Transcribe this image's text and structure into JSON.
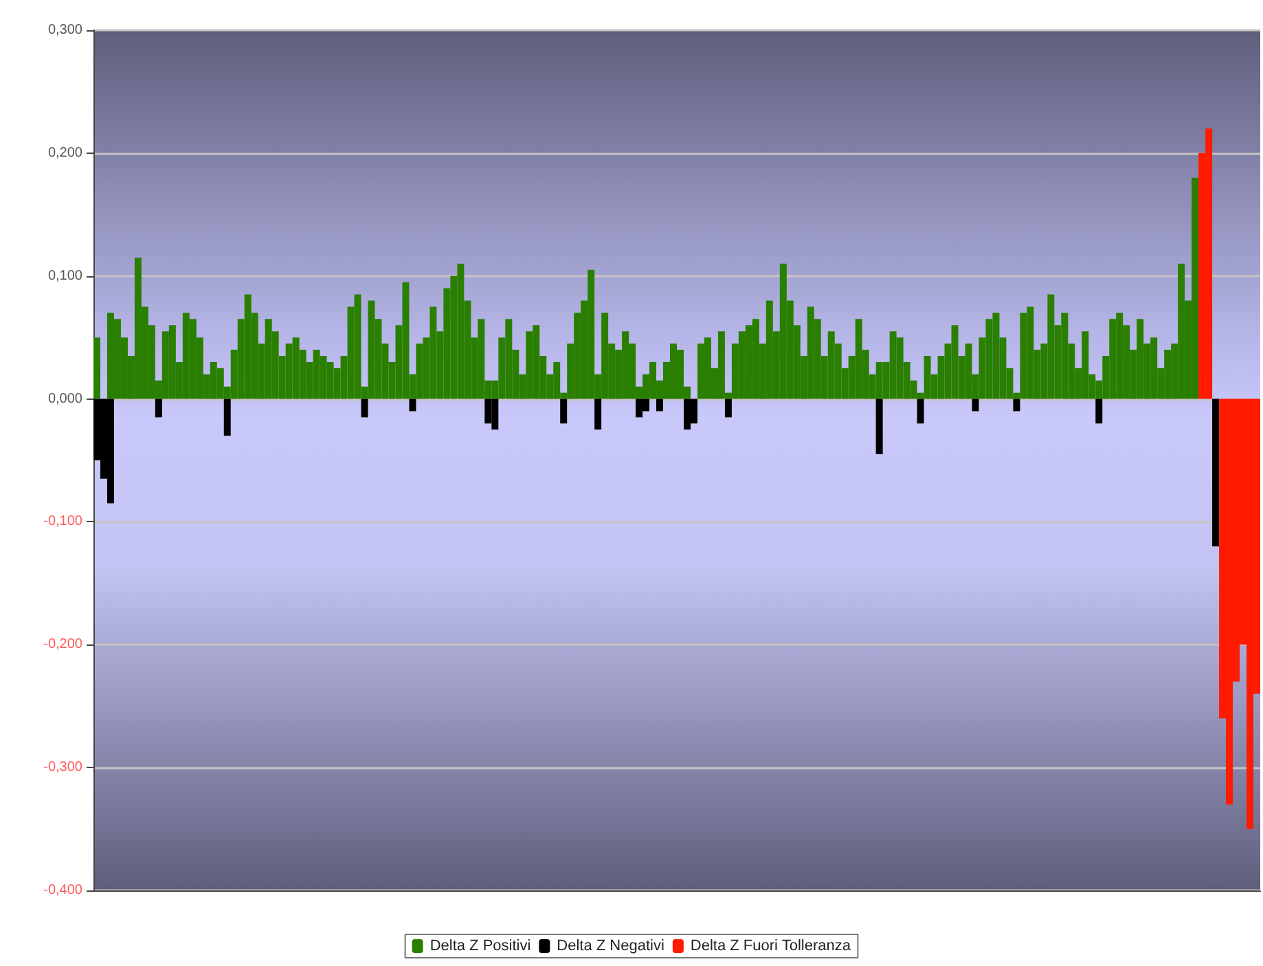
{
  "chart_data": {
    "type": "bar",
    "grid": "y",
    "legend": "bottom",
    "tick_labels": "y",
    "ylim": [
      -0.4,
      0.3
    ],
    "yticks": [
      {
        "value": -0.4,
        "label": "-0,400"
      },
      {
        "value": -0.3,
        "label": "-0,300"
      },
      {
        "value": -0.2,
        "label": "-0,200"
      },
      {
        "value": -0.1,
        "label": "-0,100"
      },
      {
        "value": 0,
        "label": "0,000"
      },
      {
        "value": 0.1,
        "label": "0,100"
      },
      {
        "value": 0.2,
        "label": "0,200"
      },
      {
        "value": 0.3,
        "label": "0,300"
      }
    ],
    "categories": [
      null,
      null,
      null,
      null,
      null,
      null,
      null,
      null,
      null,
      null,
      null,
      null,
      null,
      null,
      null,
      null,
      null,
      null,
      null,
      null,
      null,
      null,
      null,
      null,
      null,
      null,
      null,
      null,
      null,
      null,
      null,
      null,
      null,
      null,
      null,
      null,
      null,
      null,
      null,
      null,
      null,
      null,
      null,
      null,
      null,
      null,
      null,
      null,
      null,
      null,
      null,
      null,
      null,
      null,
      null,
      null,
      null,
      null,
      null,
      null,
      null,
      null,
      null,
      null,
      null,
      null,
      null,
      null,
      null,
      null,
      null,
      null,
      null,
      null,
      null,
      null,
      null,
      null,
      null,
      null,
      null,
      null,
      null,
      null,
      null,
      null,
      null,
      null,
      null,
      null,
      null,
      null,
      null,
      null,
      null,
      null,
      null,
      null,
      null,
      null,
      null,
      null,
      null,
      null,
      null,
      null,
      null,
      null,
      null,
      null,
      null,
      null,
      null,
      null,
      null,
      null,
      null,
      null,
      null,
      null,
      null,
      null,
      null,
      null,
      null,
      null,
      null,
      null,
      null,
      null,
      null,
      null,
      null,
      null,
      null,
      null,
      null,
      null,
      null,
      null,
      null,
      null,
      null,
      null,
      null,
      null,
      null,
      null,
      null,
      null,
      null,
      null,
      null,
      null,
      null,
      null,
      null,
      null,
      null,
      null,
      null,
      null,
      null,
      null,
      null,
      null,
      null,
      null,
      null,
      null
    ],
    "series": [
      {
        "name": "Delta Z Positivi",
        "color": "#2a7f00",
        "values": [
          0.05,
          null,
          0.07,
          0.065,
          0.05,
          0.035,
          0.115,
          0.075,
          0.06,
          0.015,
          0.055,
          0.06,
          0.03,
          0.07,
          0.065,
          0.05,
          0.02,
          0.03,
          0.025,
          0.01,
          0.04,
          0.065,
          0.085,
          0.07,
          0.045,
          0.065,
          0.055,
          0.035,
          0.045,
          0.05,
          0.04,
          0.03,
          0.04,
          0.035,
          0.03,
          0.025,
          0.035,
          0.075,
          0.085,
          0.01,
          0.08,
          0.065,
          0.045,
          0.03,
          0.06,
          0.095,
          0.02,
          0.045,
          0.05,
          0.075,
          0.055,
          0.09,
          0.1,
          0.11,
          0.08,
          0.05,
          0.065,
          0.015,
          0.015,
          0.05,
          0.065,
          0.04,
          0.02,
          0.055,
          0.06,
          0.035,
          0.02,
          0.03,
          0.005,
          0.045,
          0.07,
          0.08,
          0.105,
          0.02,
          0.07,
          0.045,
          0.04,
          0.055,
          0.045,
          0.01,
          0.02,
          0.03,
          0.015,
          0.03,
          0.045,
          0.04,
          0.01,
          null,
          0.045,
          0.05,
          0.025,
          0.055,
          0.005,
          0.045,
          0.055,
          0.06,
          0.065,
          0.045,
          0.08,
          0.055,
          0.11,
          0.08,
          0.06,
          0.035,
          0.075,
          0.065,
          0.035,
          0.055,
          0.045,
          0.025,
          0.035,
          0.065,
          0.04,
          0.02,
          0.03,
          0.03,
          0.055,
          0.05,
          0.03,
          0.015,
          0.005,
          0.035,
          0.02,
          0.035,
          0.045,
          0.06,
          0.035,
          0.045,
          0.02,
          0.05,
          0.065,
          0.07,
          0.05,
          0.025,
          0.005,
          0.07,
          0.075,
          0.04,
          0.045,
          0.085,
          0.06,
          0.07,
          0.045,
          0.025,
          0.055,
          0.02,
          0.015,
          0.035,
          0.065,
          0.07,
          0.06,
          0.04,
          0.065,
          0.045,
          0.05,
          0.025,
          0.04,
          0.045,
          0.11,
          0.08,
          0.18,
          null,
          null,
          null,
          null,
          null,
          null,
          null,
          null,
          null
        ]
      },
      {
        "name": "Delta Z Negativi",
        "color": "#000000",
        "values": [
          -0.05,
          -0.065,
          -0.085,
          null,
          null,
          null,
          null,
          null,
          null,
          -0.015,
          null,
          null,
          null,
          null,
          null,
          null,
          null,
          null,
          null,
          -0.03,
          null,
          null,
          null,
          null,
          null,
          null,
          null,
          null,
          null,
          null,
          null,
          null,
          null,
          null,
          null,
          null,
          null,
          null,
          null,
          -0.015,
          null,
          null,
          null,
          null,
          null,
          null,
          -0.01,
          null,
          null,
          null,
          null,
          null,
          null,
          null,
          null,
          null,
          null,
          -0.02,
          -0.025,
          null,
          null,
          null,
          null,
          null,
          null,
          null,
          null,
          null,
          -0.02,
          null,
          null,
          null,
          null,
          -0.025,
          null,
          null,
          null,
          null,
          null,
          -0.015,
          -0.01,
          null,
          -0.01,
          null,
          null,
          null,
          -0.025,
          -0.02,
          null,
          null,
          null,
          null,
          -0.015,
          null,
          null,
          null,
          null,
          null,
          null,
          null,
          null,
          null,
          null,
          null,
          null,
          null,
          null,
          null,
          null,
          null,
          null,
          null,
          null,
          null,
          -0.045,
          null,
          null,
          null,
          null,
          null,
          -0.02,
          null,
          null,
          null,
          null,
          null,
          null,
          null,
          -0.01,
          null,
          null,
          null,
          null,
          null,
          -0.01,
          null,
          null,
          null,
          null,
          null,
          null,
          null,
          null,
          null,
          null,
          null,
          -0.02,
          null,
          null,
          null,
          null,
          null,
          null,
          null,
          null,
          null,
          null,
          null,
          null,
          null,
          null,
          null,
          null,
          -0.12,
          null,
          null,
          null,
          null,
          null,
          null
        ]
      },
      {
        "name": "Delta Z Fuori Tolleranza",
        "color": "#ff1a00",
        "values": [
          null,
          null,
          null,
          null,
          null,
          null,
          null,
          null,
          null,
          null,
          null,
          null,
          null,
          null,
          null,
          null,
          null,
          null,
          null,
          null,
          null,
          null,
          null,
          null,
          null,
          null,
          null,
          null,
          null,
          null,
          null,
          null,
          null,
          null,
          null,
          null,
          null,
          null,
          null,
          null,
          null,
          null,
          null,
          null,
          null,
          null,
          null,
          null,
          null,
          null,
          null,
          null,
          null,
          null,
          null,
          null,
          null,
          null,
          null,
          null,
          null,
          null,
          null,
          null,
          null,
          null,
          null,
          null,
          null,
          null,
          null,
          null,
          null,
          null,
          null,
          null,
          null,
          null,
          null,
          null,
          null,
          null,
          null,
          null,
          null,
          null,
          null,
          null,
          null,
          null,
          null,
          null,
          null,
          null,
          null,
          null,
          null,
          null,
          null,
          null,
          null,
          null,
          null,
          null,
          null,
          null,
          null,
          null,
          null,
          null,
          null,
          null,
          null,
          null,
          null,
          null,
          null,
          null,
          null,
          null,
          null,
          null,
          null,
          null,
          null,
          null,
          null,
          null,
          null,
          null,
          null,
          null,
          null,
          null,
          null,
          null,
          null,
          null,
          null,
          null,
          null,
          null,
          null,
          null,
          null,
          null,
          null,
          null,
          null,
          null,
          null,
          null,
          null,
          null,
          null,
          null,
          null,
          null,
          null,
          null,
          null,
          0.2,
          0.22,
          null,
          -0.26,
          -0.33,
          -0.23,
          -0.2,
          -0.35,
          -0.24
        ]
      }
    ]
  }
}
